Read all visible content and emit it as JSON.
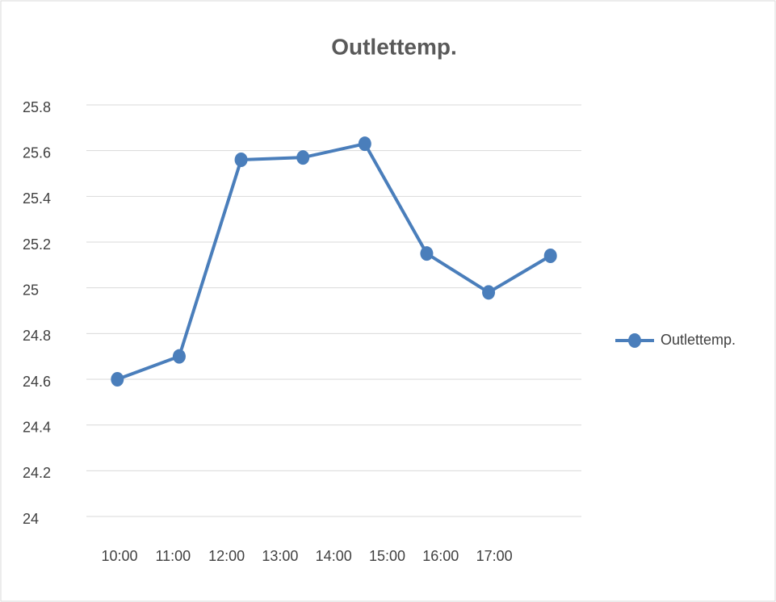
{
  "chart_data": {
    "type": "line",
    "title": "Outlettemp.",
    "categories": [
      "10:00",
      "11:00",
      "12:00",
      "13:00",
      "14:00",
      "15:00",
      "16:00",
      "17:00"
    ],
    "series": [
      {
        "name": "Outlettemp.",
        "color": "#4a7ebb",
        "values": [
          24.6,
          24.7,
          25.56,
          25.57,
          25.63,
          25.15,
          24.98,
          25.14
        ]
      }
    ],
    "ylim": [
      24,
      25.8
    ],
    "yticks": [
      24,
      24.2,
      24.4,
      24.6,
      24.8,
      25,
      25.2,
      25.4,
      25.6,
      25.8
    ],
    "grid": true,
    "legend": "right"
  }
}
